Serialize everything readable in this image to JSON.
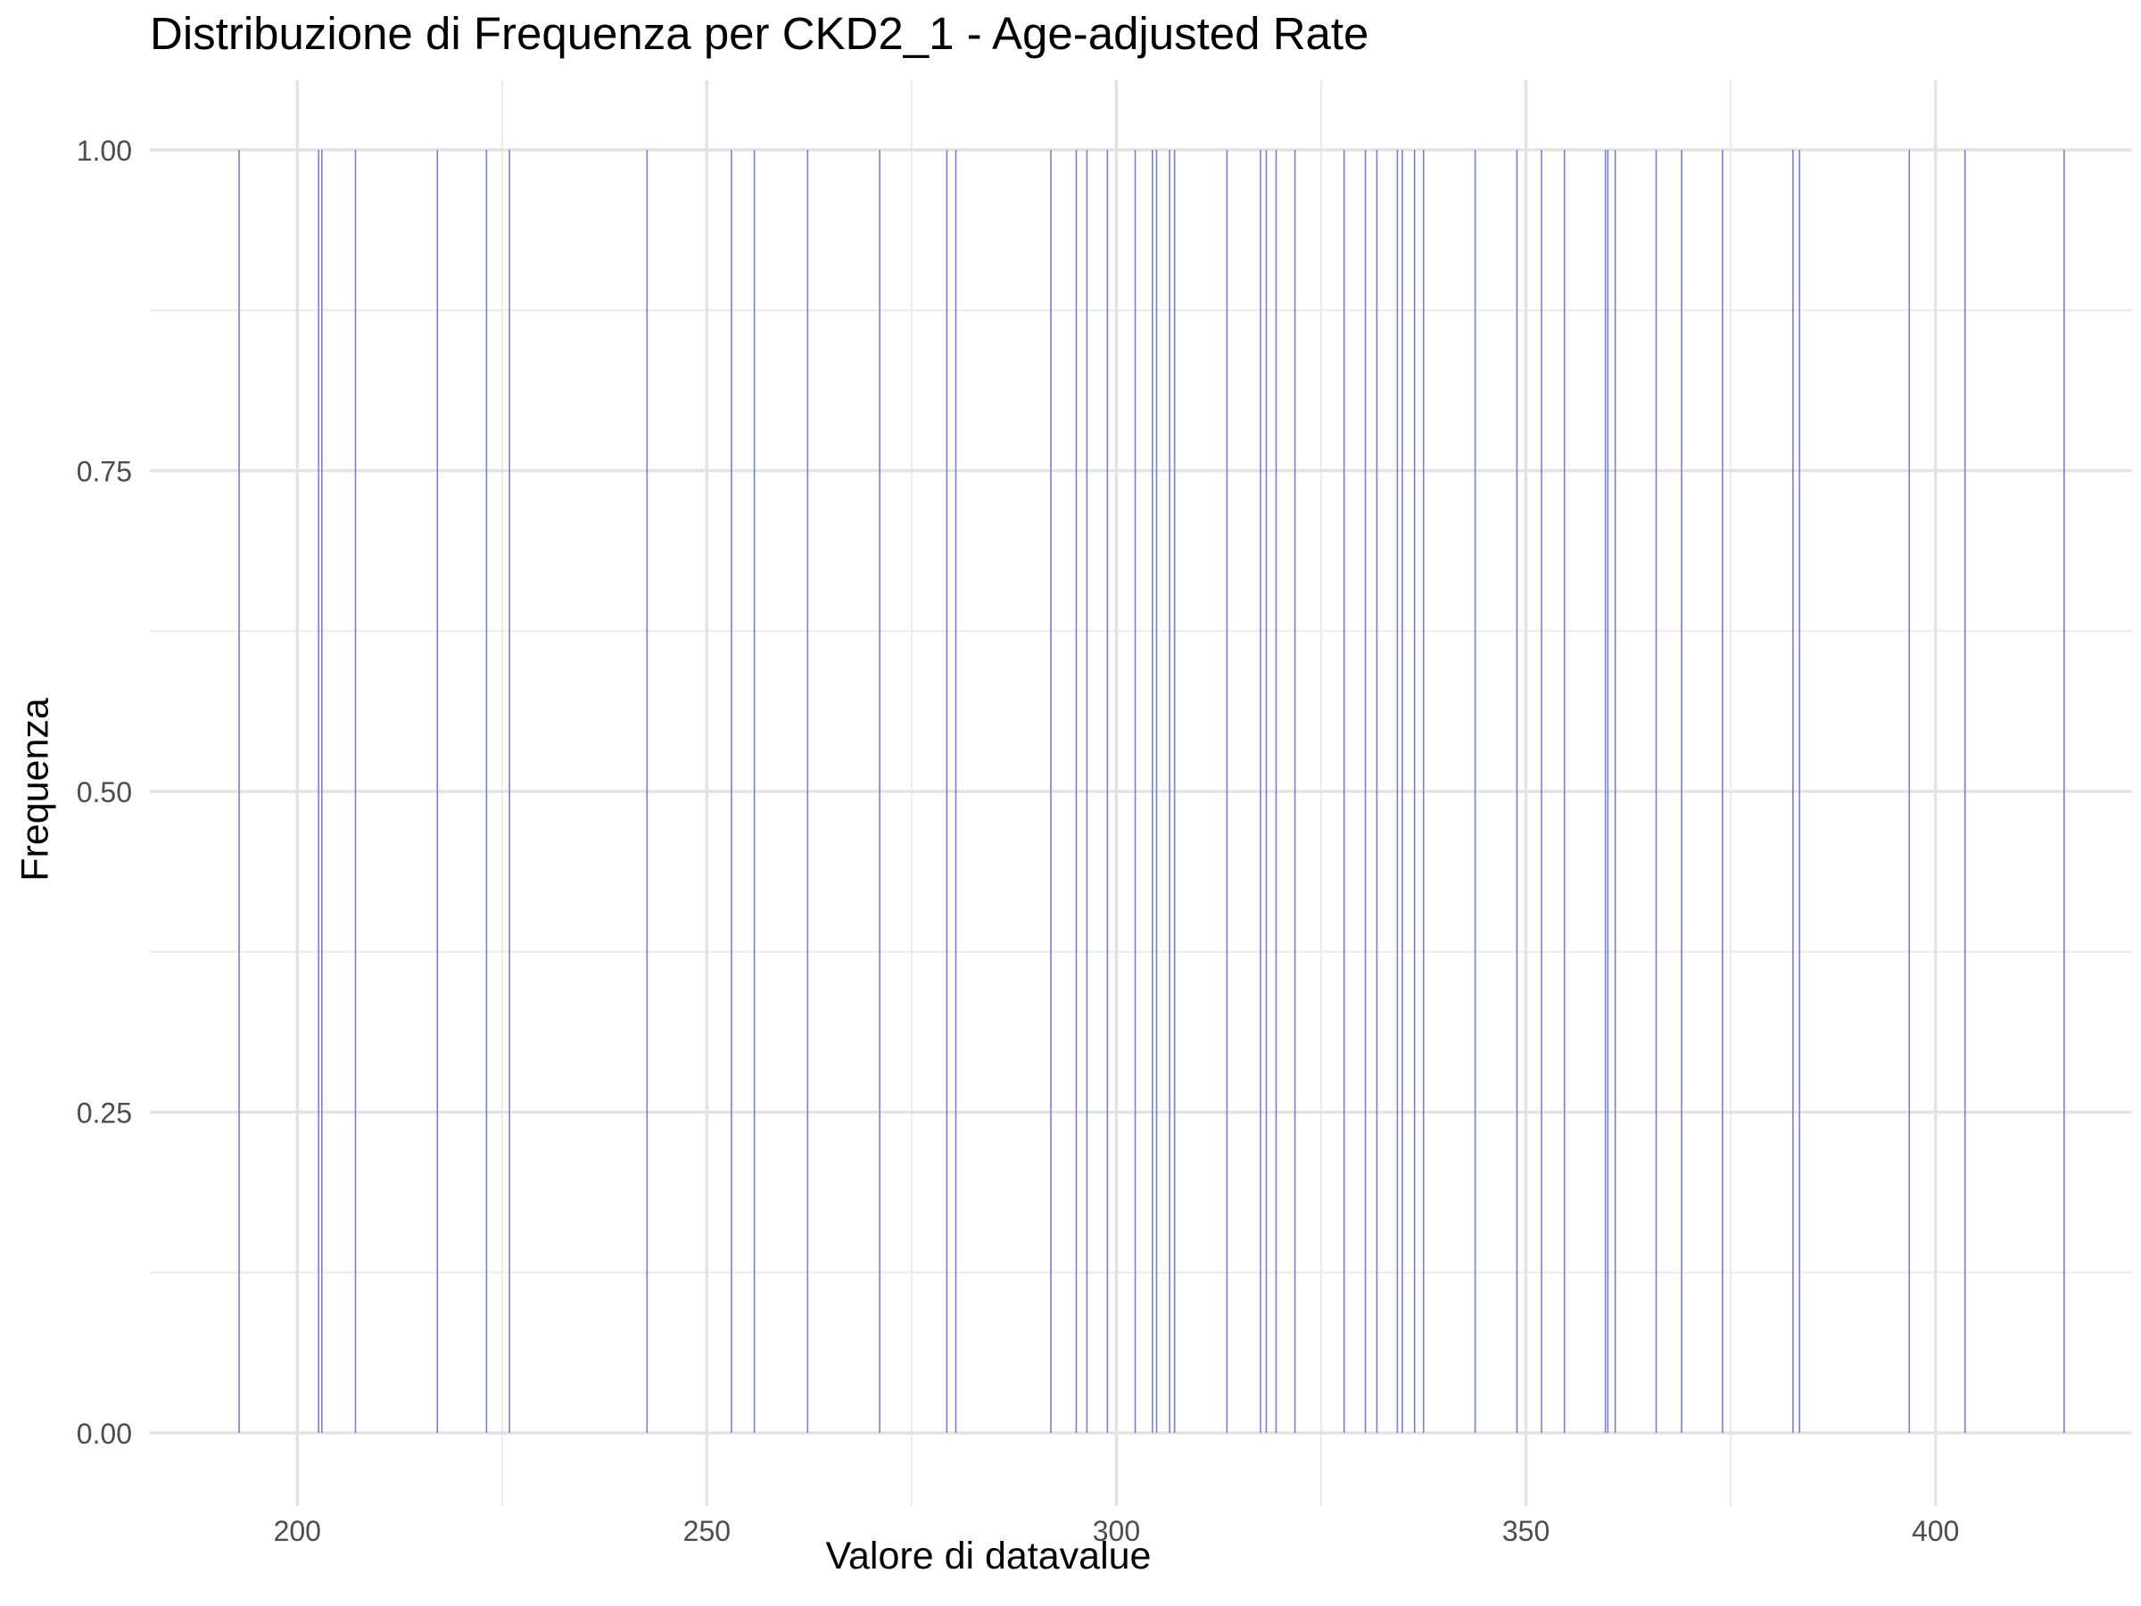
{
  "chart_data": {
    "type": "bar",
    "title": "Distribuzione di Frequenza per CKD2_1 - Age-adjusted Rate",
    "xlabel": "Valore di datavalue",
    "ylabel": "Frequenza",
    "xlim": [
      182,
      424
    ],
    "ylim": [
      -0.05,
      1.05
    ],
    "x_ticks": [
      200,
      250,
      300,
      350,
      400
    ],
    "x_tick_labels": [
      "200",
      "250",
      "300",
      "350",
      "400"
    ],
    "y_ticks": [
      0,
      0.25,
      0.5,
      0.75,
      1
    ],
    "y_tick_labels": [
      "0.00",
      "0.25",
      "0.50",
      "0.75",
      "1.00"
    ],
    "grid": true,
    "bar_color": "#7b7fd0",
    "values": [
      192.9,
      202.6,
      203.0,
      207.1,
      217.1,
      223.1,
      225.9,
      242.7,
      253.0,
      255.8,
      262.3,
      271.1,
      279.3,
      280.4,
      292.0,
      295.1,
      296.4,
      298.9,
      302.3,
      304.4,
      304.9,
      306.5,
      307.1,
      313.5,
      317.6,
      318.3,
      319.5,
      321.8,
      327.8,
      330.4,
      331.8,
      334.3,
      334.9,
      336.4,
      337.5,
      343.8,
      348.9,
      351.9,
      354.7,
      359.7,
      360.0,
      360.9,
      365.9,
      369.0,
      374.0,
      382.6,
      383.4,
      396.8,
      403.6,
      415.7
    ],
    "frequency": 1
  }
}
